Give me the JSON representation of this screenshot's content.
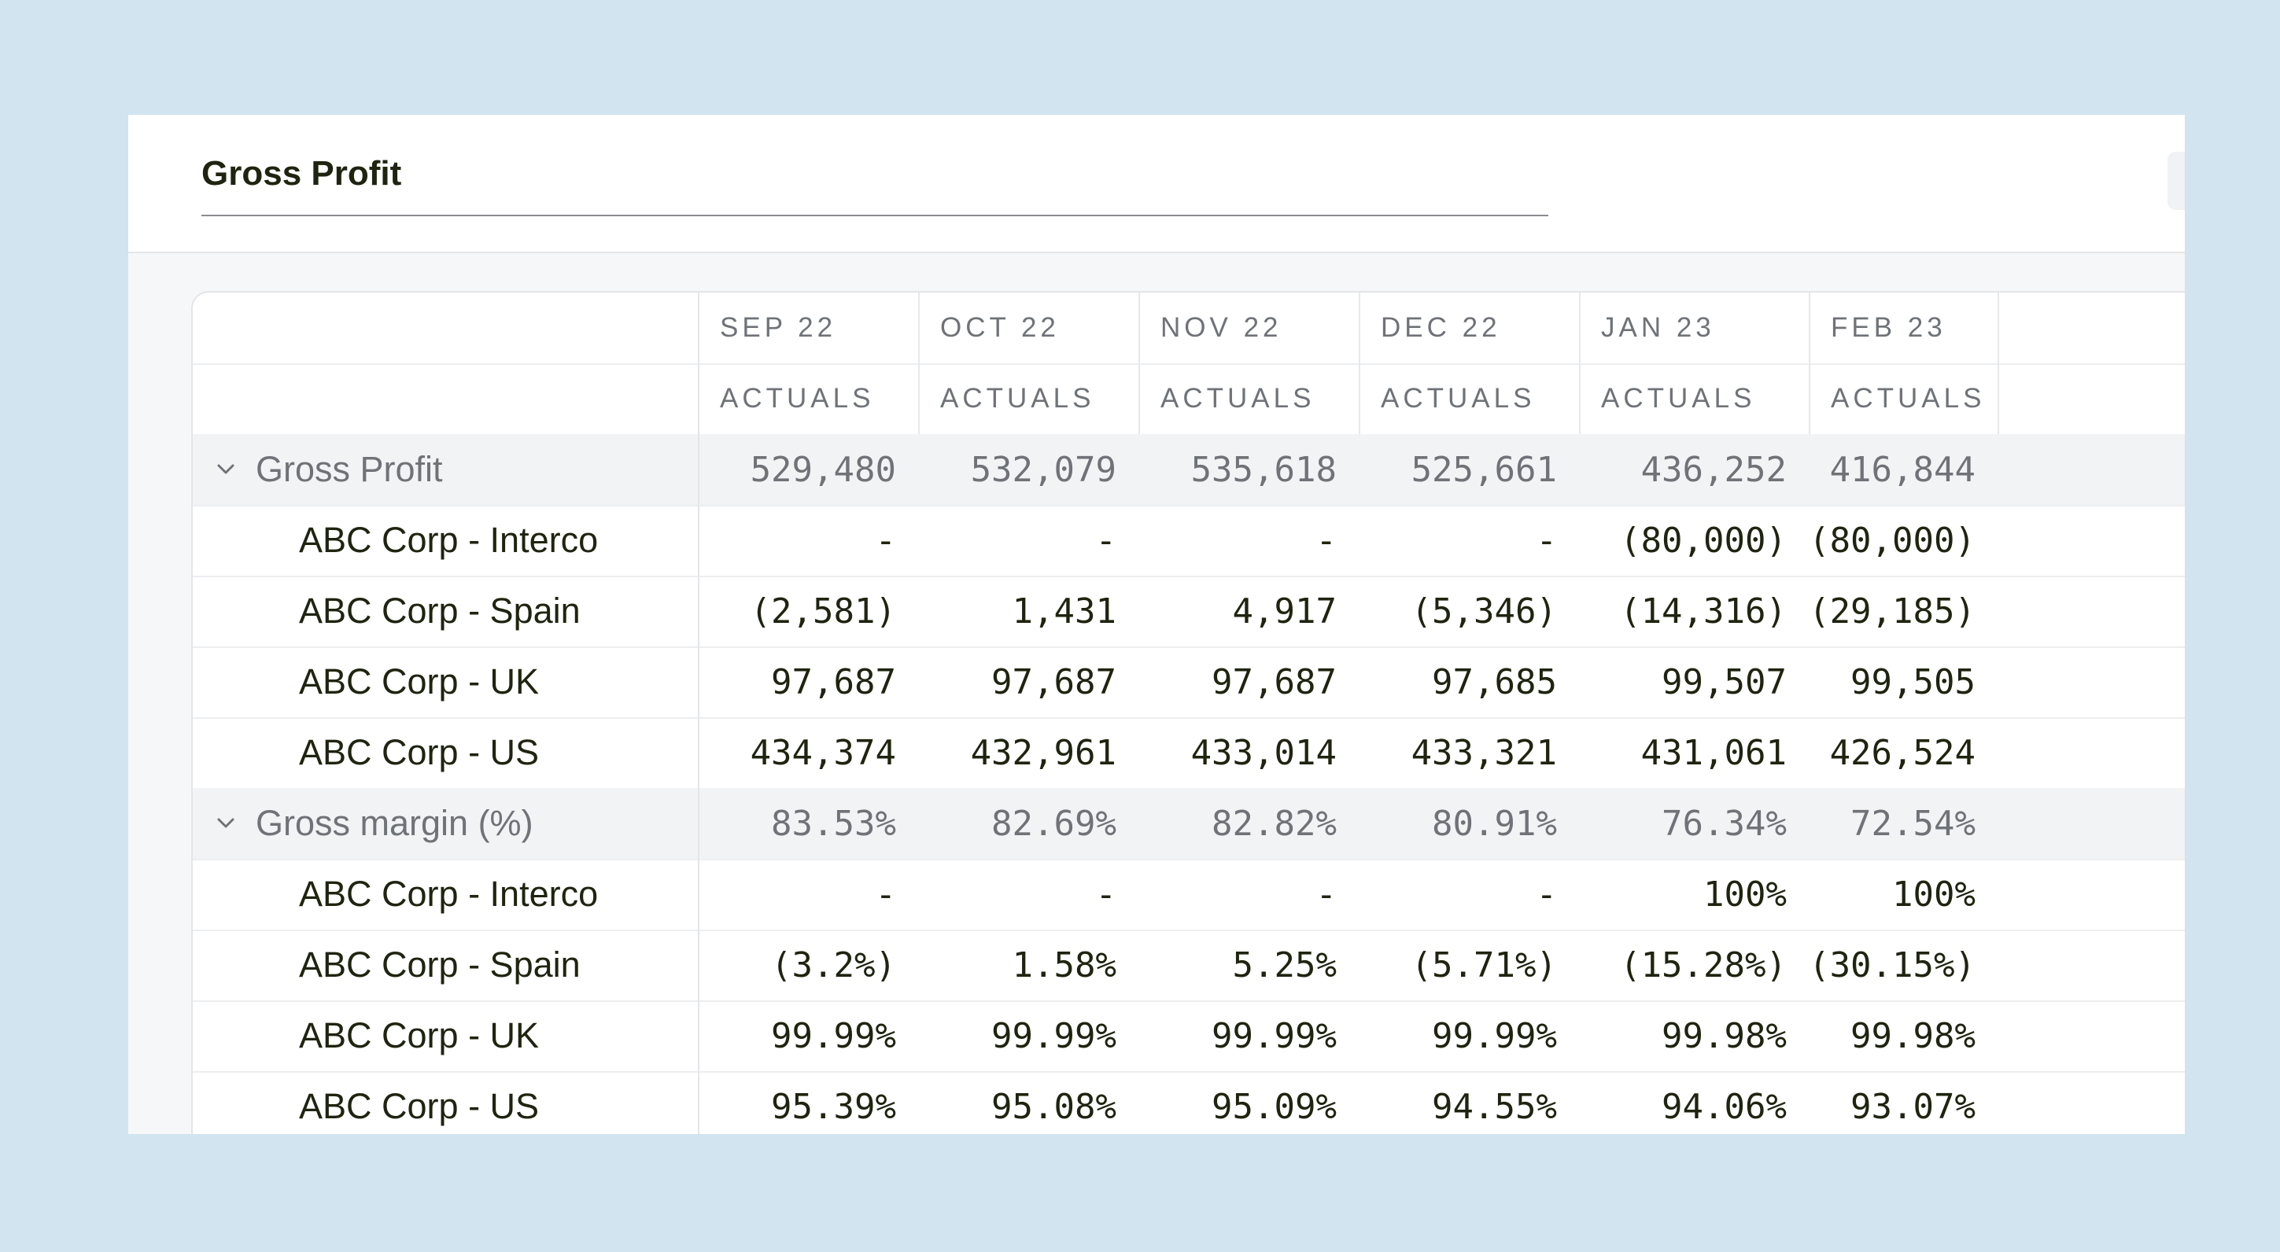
{
  "header": {
    "title": "Gross Profit"
  },
  "columns": [
    {
      "period": "SEP 22",
      "type": "ACTUALS"
    },
    {
      "period": "OCT 22",
      "type": "ACTUALS"
    },
    {
      "period": "NOV 22",
      "type": "ACTUALS"
    },
    {
      "period": "DEC 22",
      "type": "ACTUALS"
    },
    {
      "period": "JAN 23",
      "type": "ACTUALS"
    },
    {
      "period": "FEB 23",
      "type": "ACTUALS"
    }
  ],
  "rows": [
    {
      "label": "Gross Profit",
      "kind": "group",
      "icon": "chevron-down-icon",
      "values": [
        "529,480",
        "532,079",
        "535,618",
        "525,661",
        "436,252",
        "416,844"
      ]
    },
    {
      "label": "ABC Corp - Interco",
      "kind": "child",
      "values": [
        "-",
        "-",
        "-",
        "-",
        "(80,000)",
        "(80,000)"
      ]
    },
    {
      "label": "ABC Corp - Spain",
      "kind": "child",
      "values": [
        "(2,581)",
        "1,431",
        "4,917",
        "(5,346)",
        "(14,316)",
        "(29,185)"
      ]
    },
    {
      "label": "ABC Corp - UK",
      "kind": "child",
      "values": [
        "97,687",
        "97,687",
        "97,687",
        "97,685",
        "99,507",
        "99,505"
      ]
    },
    {
      "label": "ABC Corp - US",
      "kind": "child",
      "values": [
        "434,374",
        "432,961",
        "433,014",
        "433,321",
        "431,061",
        "426,524"
      ]
    },
    {
      "label": "Gross margin (%)",
      "kind": "group",
      "icon": "chevron-down-icon",
      "values": [
        "83.53%",
        "82.69%",
        "82.82%",
        "80.91%",
        "76.34%",
        "72.54%"
      ]
    },
    {
      "label": "ABC Corp - Interco",
      "kind": "child",
      "values": [
        "-",
        "-",
        "-",
        "-",
        "100%",
        "100%"
      ]
    },
    {
      "label": "ABC Corp - Spain",
      "kind": "child",
      "values": [
        "(3.2%)",
        "1.58%",
        "5.25%",
        "(5.71%)",
        "(15.28%)",
        "(30.15%)"
      ]
    },
    {
      "label": "ABC Corp - UK",
      "kind": "child",
      "values": [
        "99.99%",
        "99.99%",
        "99.99%",
        "99.99%",
        "99.98%",
        "99.98%"
      ]
    },
    {
      "label": "ABC Corp - US",
      "kind": "child",
      "values": [
        "95.39%",
        "95.08%",
        "95.09%",
        "94.55%",
        "94.06%",
        "93.07%"
      ]
    }
  ],
  "colors": {
    "background": "#d1e4f0",
    "text": "#1f2410",
    "muted": "#6f7378",
    "group_row": "#f2f3f5"
  }
}
